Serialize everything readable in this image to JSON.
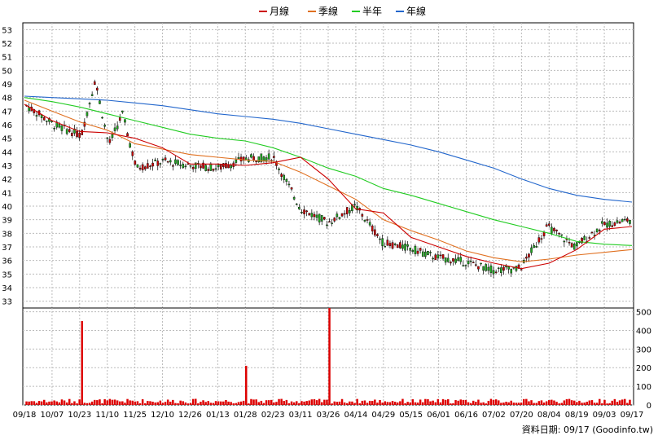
{
  "chart_data": {
    "type": "candlestick",
    "legend": [
      {
        "name": "月線",
        "color": "#cc0000"
      },
      {
        "name": "季線",
        "color": "#e07020"
      },
      {
        "name": "半年",
        "color": "#22cc22"
      },
      {
        "name": "年線",
        "color": "#2266cc"
      }
    ],
    "price_axis": {
      "ylim": [
        32.5,
        53.5
      ],
      "ticks": [
        33,
        34,
        35,
        36,
        37,
        38,
        39,
        40,
        41,
        42,
        43,
        44,
        45,
        46,
        47,
        48,
        49,
        50,
        51,
        52,
        53
      ]
    },
    "volume_axis": {
      "ylim": [
        0,
        520
      ],
      "ticks": [
        0,
        100,
        200,
        300,
        400,
        500
      ]
    },
    "x_labels": [
      "09/18",
      "10/07",
      "10/23",
      "11/10",
      "11/25",
      "12/10",
      "12/26",
      "01/13",
      "01/28",
      "02/23",
      "03/11",
      "03/26",
      "04/14",
      "04/29",
      "05/15",
      "06/01",
      "06/16",
      "07/02",
      "07/20",
      "08/04",
      "08/19",
      "09/03",
      "09/17"
    ],
    "footer": "資料日期: 09/17  (Goodinfo.tw)",
    "colors": {
      "up": "#cc0000",
      "down": "#22aa22",
      "volume": "#dd0000",
      "grid": "#bbbbbb"
    },
    "price_points": [
      {
        "x": "09/18",
        "price": 47.4
      },
      {
        "x": "10/07",
        "price": 46.0
      },
      {
        "x": "10/23",
        "price": 45.2
      },
      {
        "x": "10/23",
        "price": 49.3
      },
      {
        "x": "11/10",
        "price": 44.5
      },
      {
        "x": "11/10",
        "price": 46.8
      },
      {
        "x": "11/25",
        "price": 42.8
      },
      {
        "x": "12/10",
        "price": 43.3
      },
      {
        "x": "12/26",
        "price": 43.0
      },
      {
        "x": "01/13",
        "price": 42.8
      },
      {
        "x": "01/28",
        "price": 43.5
      },
      {
        "x": "02/23",
        "price": 43.6
      },
      {
        "x": "03/11",
        "price": 39.8
      },
      {
        "x": "03/26",
        "price": 38.8
      },
      {
        "x": "04/14",
        "price": 40.0
      },
      {
        "x": "04/29",
        "price": 37.3
      },
      {
        "x": "05/15",
        "price": 36.9
      },
      {
        "x": "06/01",
        "price": 36.2
      },
      {
        "x": "06/16",
        "price": 35.9
      },
      {
        "x": "07/02",
        "price": 35.3
      },
      {
        "x": "07/20",
        "price": 35.4
      },
      {
        "x": "08/04",
        "price": 38.5
      },
      {
        "x": "08/19",
        "price": 37.0
      },
      {
        "x": "09/03",
        "price": 38.6
      },
      {
        "x": "09/17",
        "price": 39.0
      }
    ],
    "ma_month": [
      47.5,
      46.3,
      45.5,
      45.4,
      45.0,
      44.3,
      43.1,
      43.1,
      43.0,
      43.2,
      43.6,
      42.0,
      39.8,
      39.5,
      37.7,
      37.0,
      36.3,
      35.8,
      35.4,
      35.8,
      36.8,
      38.3,
      38.5
    ],
    "ma_quarter": [
      47.8,
      47.0,
      46.2,
      45.6,
      44.6,
      44.2,
      43.8,
      43.6,
      43.4,
      43.3,
      42.5,
      41.5,
      40.5,
      39.0,
      38.2,
      37.5,
      36.7,
      36.2,
      35.9,
      36.1,
      36.4,
      36.6,
      36.8
    ],
    "ma_half": [
      48.0,
      47.7,
      47.3,
      46.8,
      46.3,
      45.8,
      45.3,
      45.0,
      44.8,
      44.3,
      43.6,
      42.8,
      42.2,
      41.3,
      40.8,
      40.2,
      39.6,
      39.0,
      38.5,
      38.0,
      37.4,
      37.2,
      37.1
    ],
    "ma_year": [
      48.1,
      48.0,
      47.9,
      47.8,
      47.6,
      47.4,
      47.1,
      46.8,
      46.6,
      46.4,
      46.1,
      45.7,
      45.3,
      44.9,
      44.5,
      44.0,
      43.4,
      42.8,
      42.0,
      41.3,
      40.8,
      40.5,
      40.3
    ],
    "volume_peaks": [
      {
        "x": "10/23",
        "value": 450
      },
      {
        "x": "01/28",
        "value": 210
      },
      {
        "x": "03/26",
        "value": 520
      }
    ]
  }
}
